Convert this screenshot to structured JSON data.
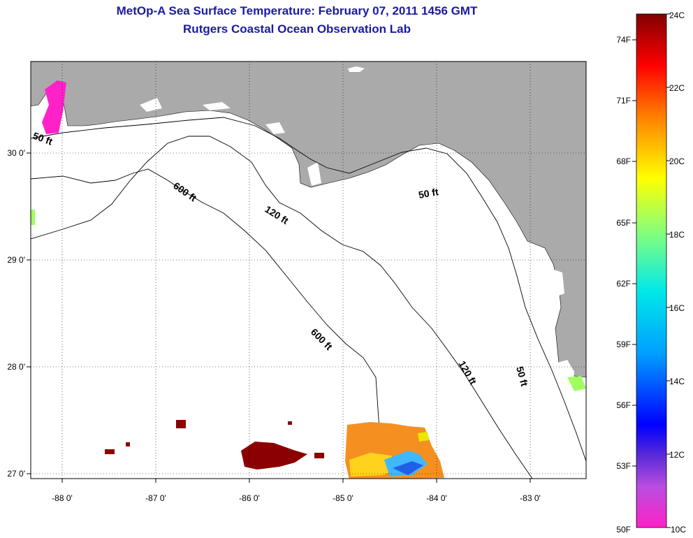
{
  "title_line1": "MetOp-A Sea Surface Temperature:  February 07, 2011 1456 GMT",
  "title_line2": "Rutgers Coastal Ocean Observation Lab",
  "map": {
    "lat_labels": [
      "30 0'",
      "29 0'",
      "28 0'",
      "27 0'"
    ],
    "lon_labels": [
      "-88 0'",
      "-87 0'",
      "-86 0'",
      "-85 0'",
      "-84 0'",
      "-83 0'"
    ],
    "contour_labels": {
      "west_50": "50 ft",
      "nw_600": "600 ft",
      "nw_120": "120 ft",
      "east_50": "50 ft",
      "mid_600": "600 ft",
      "se_120": "120 ft",
      "se_50": "50 ft"
    },
    "colors": {
      "land": "#aaaaaa",
      "water": "#ffffff",
      "contour": "#000000"
    }
  },
  "colorbar": {
    "fahrenheit": [
      "74F",
      "71F",
      "68F",
      "65F",
      "62F",
      "59F",
      "56F",
      "53F",
      "50F"
    ],
    "celsius": [
      "24C",
      "22C",
      "20C",
      "18C",
      "16C",
      "14C",
      "12C",
      "10C"
    ]
  }
}
